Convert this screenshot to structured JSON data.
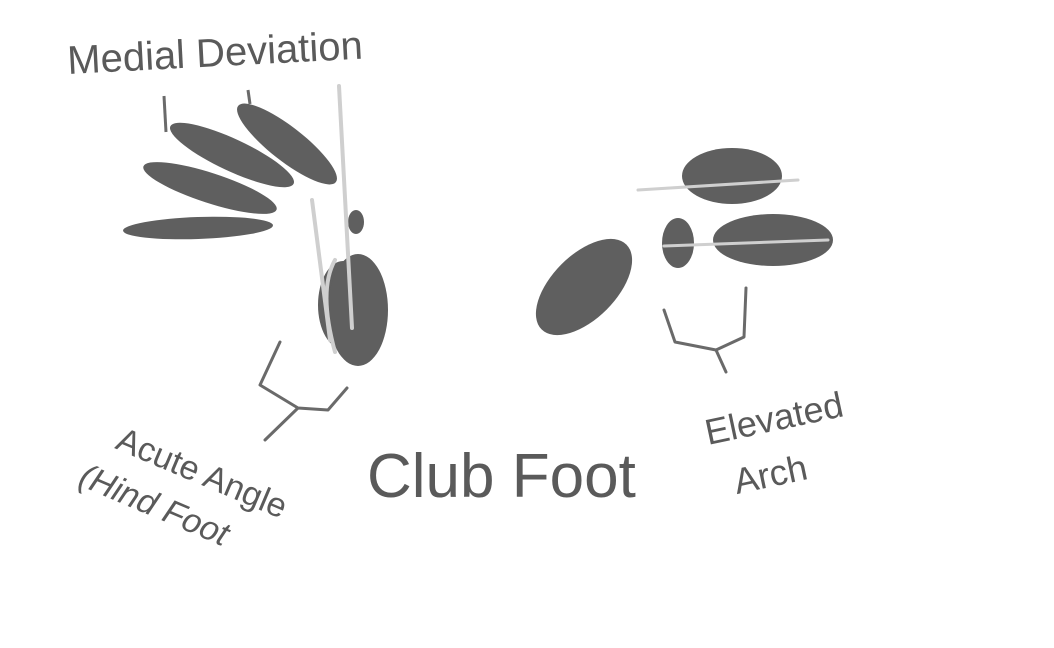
{
  "labels": {
    "medial_deviation": "Medial Deviation",
    "acute_angle_line1": "Acute Angle",
    "acute_angle_line2": "(Hind Foot",
    "club_foot": "Club Foot",
    "elevated_line1": "Elevated",
    "elevated_line2": "Arch"
  },
  "colors": {
    "bone": "#5f5f5f",
    "axis_line": "#cfcfcf",
    "label_text": "#5a5a5a",
    "bracket": "#6a6a6a",
    "background": "#ffffff"
  }
}
